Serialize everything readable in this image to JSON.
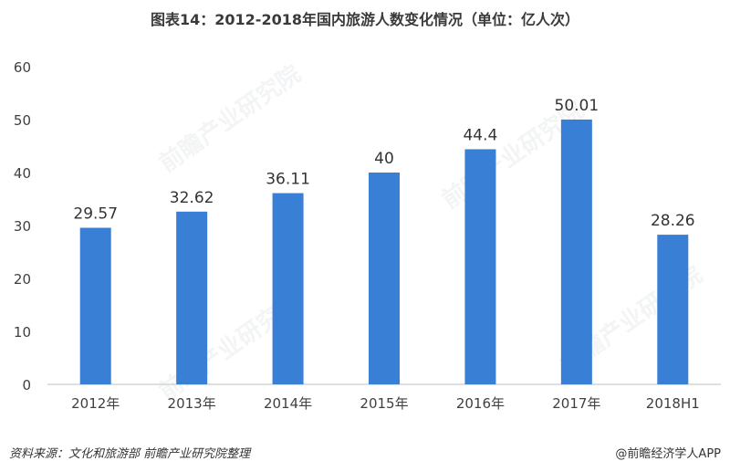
{
  "chart_data": {
    "type": "bar",
    "title": "图表14：2012-2018年国内旅游人数变化情况（单位：亿人次）",
    "categories": [
      "2012年",
      "2013年",
      "2014年",
      "2015年",
      "2016年",
      "2017年",
      "2018H1"
    ],
    "values": [
      29.57,
      32.62,
      36.11,
      40,
      44.4,
      50.01,
      28.26
    ],
    "value_labels": [
      "29.57",
      "32.62",
      "36.11",
      "40",
      "44.4",
      "50.01",
      "28.26"
    ],
    "xlabel": "",
    "ylabel": "",
    "ylim": [
      0,
      60
    ],
    "yticks": [
      0,
      10,
      20,
      30,
      40,
      50,
      60
    ],
    "grid": false,
    "legend": "none",
    "bar_color": "#3a7fd6"
  },
  "footer": {
    "source": "资料来源：文化和旅游部  前瞻产业研究院整理",
    "credit": "@前瞻经济学人APP"
  },
  "watermark": {
    "text": "前瞻产业研究院"
  }
}
